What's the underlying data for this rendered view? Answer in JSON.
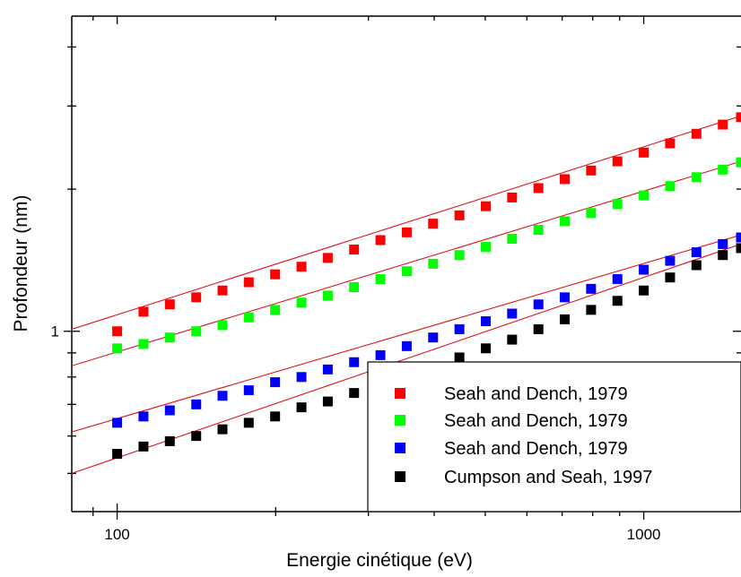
{
  "chart_data": {
    "type": "scatter",
    "xlabel": "Energie cinétique (eV)",
    "ylabel": "Profondeur (nm)",
    "x_scale": "log",
    "y_scale": "log",
    "xlim": [
      82,
      1530
    ],
    "ylim": [
      0.415,
      4.65
    ],
    "x_ticks": [
      {
        "value": 100,
        "label": "100"
      },
      {
        "value": 1000,
        "label": "1000"
      }
    ],
    "y_ticks": [
      {
        "value": 1,
        "label": "1"
      }
    ],
    "grid": false,
    "legend_position": "bottom-right",
    "x": [
      100,
      112.2,
      125.9,
      141.3,
      158.5,
      177.8,
      199.5,
      223.9,
      251.2,
      281.8,
      316.2,
      354.8,
      398.1,
      446.7,
      501.2,
      562.3,
      631.0,
      707.9,
      794.3,
      891.3,
      1000,
      1122,
      1259,
      1413,
      1530
    ],
    "series": [
      {
        "name": "Seah and Dench, 1979",
        "color": "#ff0000",
        "values": [
          1.0,
          1.1,
          1.14,
          1.18,
          1.22,
          1.27,
          1.32,
          1.37,
          1.43,
          1.49,
          1.56,
          1.62,
          1.69,
          1.76,
          1.84,
          1.92,
          2.01,
          2.1,
          2.19,
          2.29,
          2.39,
          2.5,
          2.62,
          2.74,
          2.84
        ],
        "fit_line": [
          [
            82,
            1.01
          ],
          [
            1530,
            2.86
          ]
        ]
      },
      {
        "name": "Seah and Dench, 1979",
        "color": "#00ff00",
        "values": [
          0.92,
          0.94,
          0.97,
          1.0,
          1.03,
          1.07,
          1.11,
          1.15,
          1.19,
          1.24,
          1.29,
          1.34,
          1.39,
          1.45,
          1.51,
          1.57,
          1.64,
          1.71,
          1.78,
          1.86,
          1.94,
          2.03,
          2.12,
          2.2,
          2.28
        ],
        "fit_line": [
          [
            82,
            0.845
          ],
          [
            1530,
            2.29
          ]
        ]
      },
      {
        "name": "Seah and Dench, 1979",
        "color": "#0000ff",
        "values": [
          0.64,
          0.66,
          0.68,
          0.7,
          0.73,
          0.75,
          0.78,
          0.8,
          0.83,
          0.86,
          0.89,
          0.93,
          0.97,
          1.01,
          1.05,
          1.09,
          1.14,
          1.18,
          1.23,
          1.29,
          1.35,
          1.41,
          1.47,
          1.53,
          1.58
        ],
        "fit_line": [
          [
            82,
            0.612
          ],
          [
            1530,
            1.6
          ]
        ]
      },
      {
        "name": "Cumpson and Seah, 1997",
        "color": "#000000",
        "values": [
          0.55,
          0.57,
          0.585,
          0.6,
          0.62,
          0.64,
          0.66,
          0.69,
          0.71,
          0.74,
          0.77,
          0.8,
          0.84,
          0.88,
          0.92,
          0.96,
          1.01,
          1.06,
          1.11,
          1.16,
          1.22,
          1.3,
          1.38,
          1.45,
          1.5
        ],
        "fit_line": [
          [
            82,
            0.5
          ],
          [
            1530,
            1.53
          ]
        ]
      }
    ]
  }
}
